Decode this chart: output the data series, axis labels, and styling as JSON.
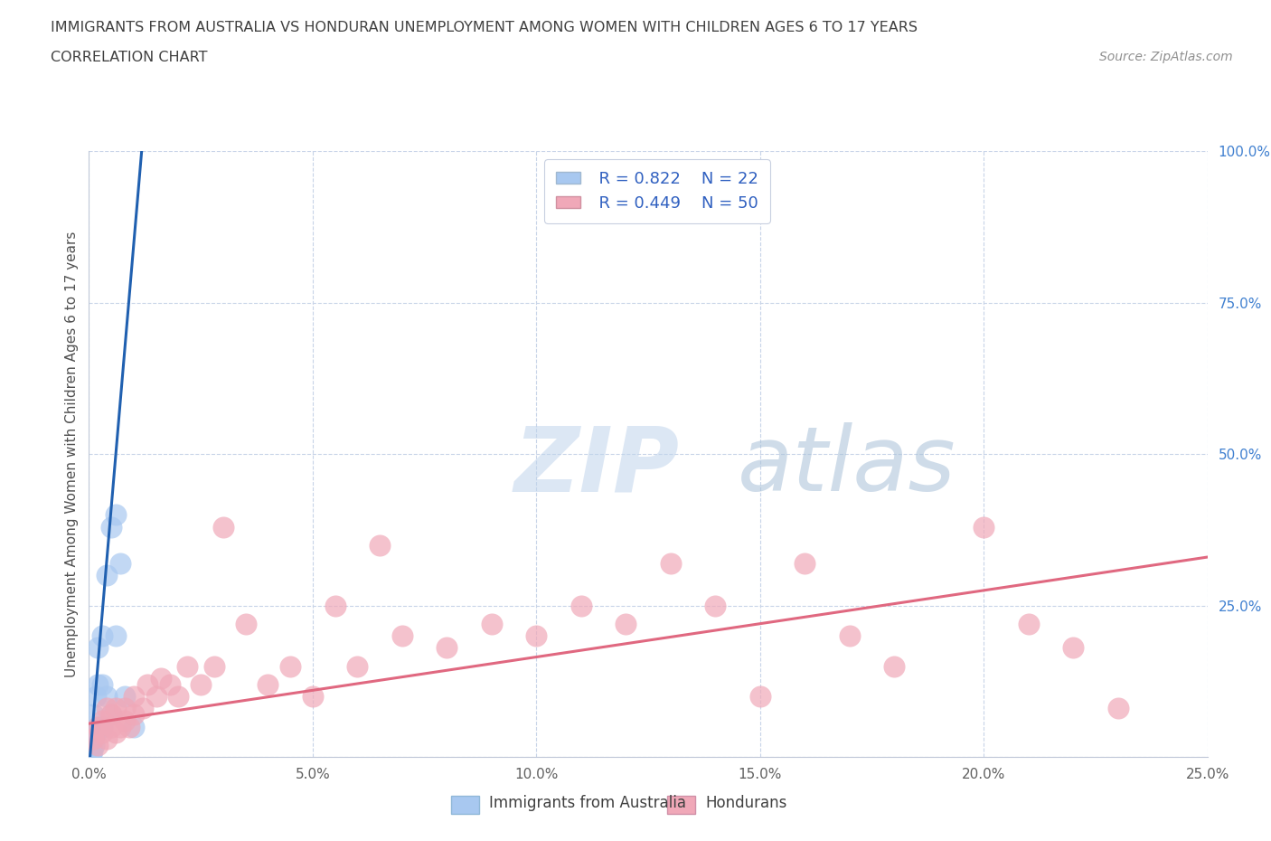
{
  "title_line1": "IMMIGRANTS FROM AUSTRALIA VS HONDURAN UNEMPLOYMENT AMONG WOMEN WITH CHILDREN AGES 6 TO 17 YEARS",
  "title_line2": "CORRELATION CHART",
  "source_text": "Source: ZipAtlas.com",
  "ylabel": "Unemployment Among Women with Children Ages 6 to 17 years",
  "xlim": [
    0.0,
    0.25
  ],
  "ylim": [
    0.0,
    1.0
  ],
  "xticks": [
    0.0,
    0.05,
    0.1,
    0.15,
    0.2,
    0.25
  ],
  "yticks": [
    0.0,
    0.25,
    0.5,
    0.75,
    1.0
  ],
  "xtick_labels": [
    "0.0%",
    "5.0%",
    "10.0%",
    "15.0%",
    "20.0%",
    "25.0%"
  ],
  "ytick_labels": [
    "",
    "25.0%",
    "50.0%",
    "75.0%",
    "100.0%"
  ],
  "watermark_zip": "ZIP",
  "watermark_atlas": "atlas",
  "legend_R1": "R = 0.822",
  "legend_N1": "N = 22",
  "legend_R2": "R = 0.449",
  "legend_N2": "N = 50",
  "legend_label1": "Immigrants from Australia",
  "legend_label2": "Hondurans",
  "dot_color_blue": "#a8c8f0",
  "dot_color_pink": "#f0a8b8",
  "line_color_blue": "#2060b0",
  "line_color_pink": "#e06880",
  "background_color": "#ffffff",
  "grid_color": "#c8d4e8",
  "title_color": "#404040",
  "legend_text_color": "#3060c0",
  "blue_dots_x": [
    0.0005,
    0.0008,
    0.001,
    0.001,
    0.0012,
    0.0015,
    0.0015,
    0.002,
    0.002,
    0.002,
    0.003,
    0.003,
    0.003,
    0.004,
    0.004,
    0.005,
    0.005,
    0.006,
    0.006,
    0.007,
    0.008,
    0.01
  ],
  "blue_dots_y": [
    0.005,
    0.01,
    0.03,
    0.07,
    0.02,
    0.04,
    0.1,
    0.05,
    0.12,
    0.18,
    0.05,
    0.12,
    0.2,
    0.1,
    0.3,
    0.07,
    0.38,
    0.2,
    0.4,
    0.32,
    0.1,
    0.05
  ],
  "pink_dots_x": [
    0.001,
    0.002,
    0.002,
    0.003,
    0.003,
    0.004,
    0.004,
    0.005,
    0.005,
    0.006,
    0.006,
    0.007,
    0.008,
    0.008,
    0.009,
    0.01,
    0.01,
    0.012,
    0.013,
    0.015,
    0.016,
    0.018,
    0.02,
    0.022,
    0.025,
    0.028,
    0.03,
    0.035,
    0.04,
    0.045,
    0.05,
    0.055,
    0.06,
    0.065,
    0.07,
    0.08,
    0.09,
    0.1,
    0.11,
    0.12,
    0.13,
    0.14,
    0.15,
    0.16,
    0.17,
    0.18,
    0.2,
    0.21,
    0.22,
    0.23
  ],
  "pink_dots_y": [
    0.03,
    0.02,
    0.05,
    0.04,
    0.06,
    0.03,
    0.08,
    0.05,
    0.07,
    0.04,
    0.08,
    0.05,
    0.06,
    0.08,
    0.05,
    0.07,
    0.1,
    0.08,
    0.12,
    0.1,
    0.13,
    0.12,
    0.1,
    0.15,
    0.12,
    0.15,
    0.38,
    0.22,
    0.12,
    0.15,
    0.1,
    0.25,
    0.15,
    0.35,
    0.2,
    0.18,
    0.22,
    0.2,
    0.25,
    0.22,
    0.32,
    0.25,
    0.1,
    0.32,
    0.2,
    0.15,
    0.38,
    0.22,
    0.18,
    0.08
  ],
  "blue_line_x": [
    0.0,
    0.012
  ],
  "blue_line_y": [
    -0.02,
    1.02
  ],
  "pink_line_x": [
    0.0,
    0.25
  ],
  "pink_line_y": [
    0.055,
    0.33
  ]
}
